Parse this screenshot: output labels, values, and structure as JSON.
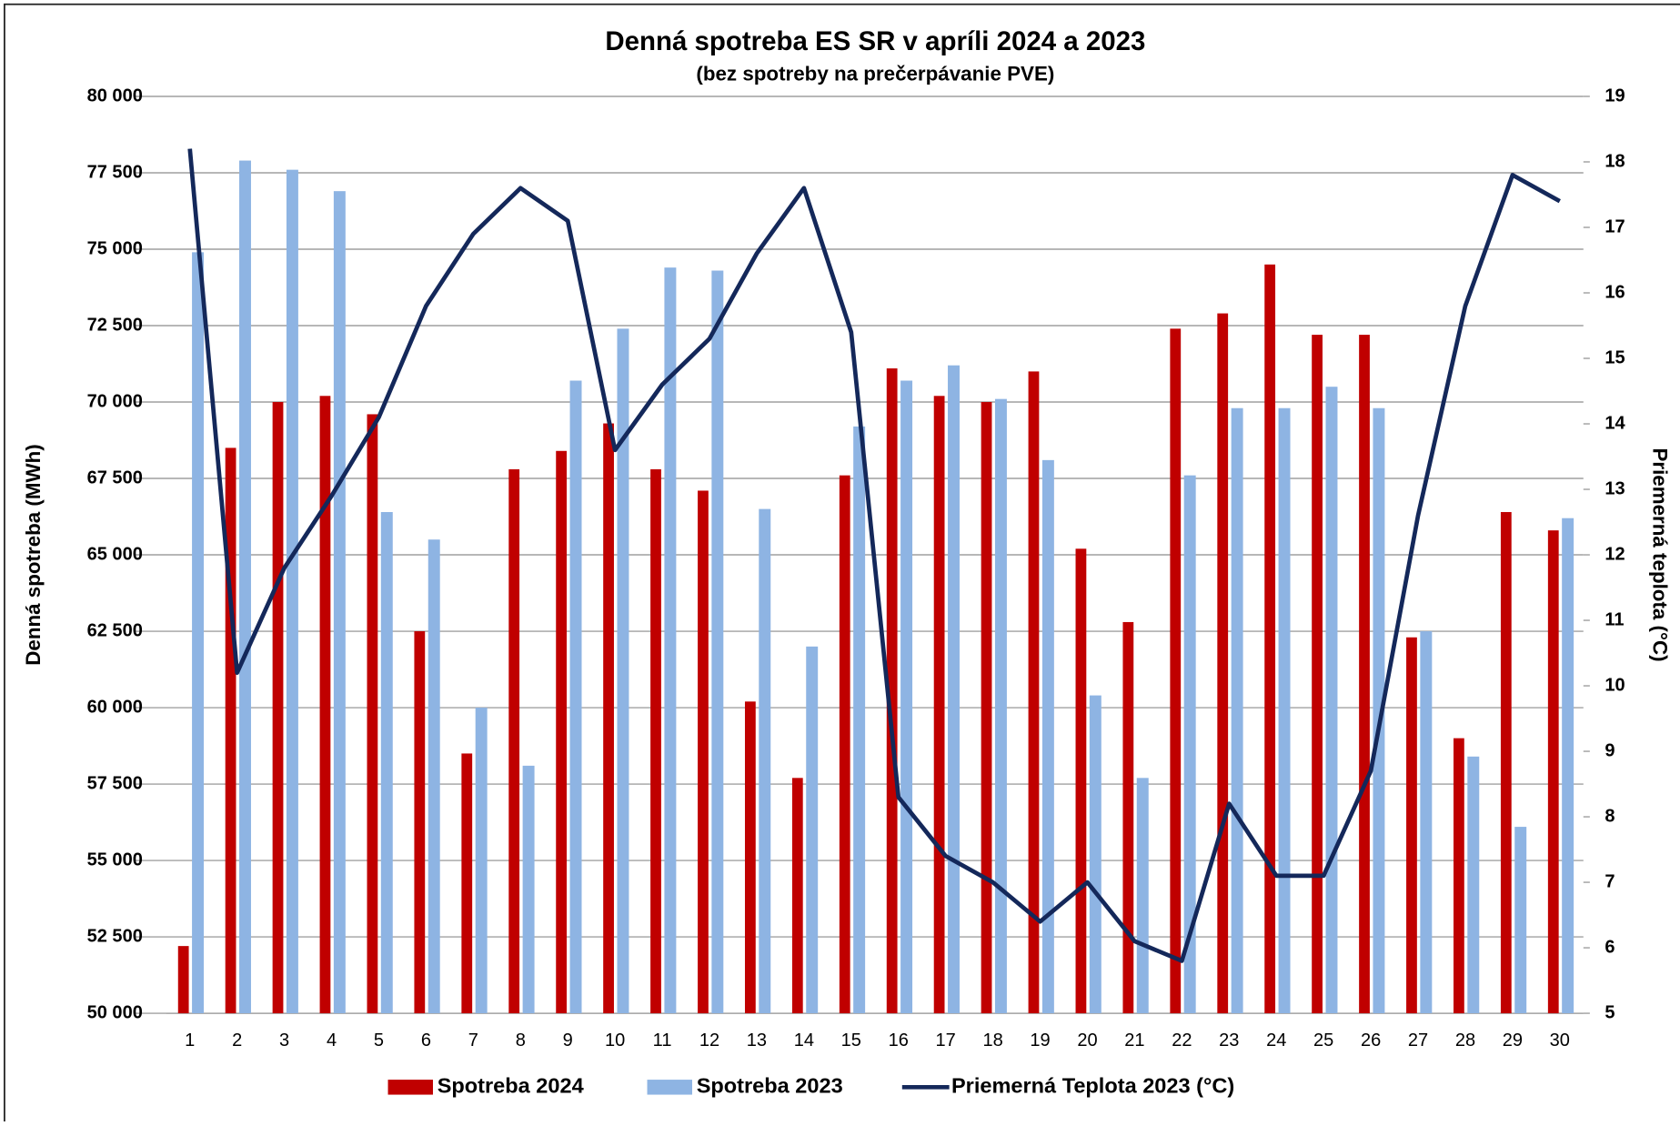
{
  "chart_data": {
    "type": "bar_line",
    "title": "Denná spotreba ES SR v apríli 2024 a 2023",
    "subtitle": "(bez spotreby na prečerpávanie PVE)",
    "ylabel": "Denná spotreba (MWh)",
    "y2label": "Priemerná teplota (°C)",
    "categories": [
      "1",
      "2",
      "3",
      "4",
      "5",
      "6",
      "7",
      "8",
      "9",
      "10",
      "11",
      "12",
      "13",
      "14",
      "15",
      "16",
      "17",
      "18",
      "19",
      "20",
      "21",
      "22",
      "23",
      "24",
      "25",
      "26",
      "27",
      "28",
      "29",
      "30"
    ],
    "series": [
      {
        "name": "Spotreba 2024",
        "type": "bar",
        "color": "#c00000",
        "values": [
          52200,
          68500,
          70000,
          70200,
          69600,
          62500,
          58500,
          67800,
          68400,
          69300,
          67800,
          67100,
          60200,
          57700,
          67600,
          71100,
          70200,
          70000,
          71000,
          65200,
          62800,
          72400,
          72900,
          74500,
          72200,
          72200,
          62300,
          59000,
          66400,
          65800
        ]
      },
      {
        "name": "Spotreba 2023",
        "type": "bar",
        "color": "#8eb4e3",
        "values": [
          74900,
          77900,
          77600,
          76900,
          66400,
          65500,
          60000,
          58100,
          70700,
          72400,
          74400,
          74300,
          66500,
          62000,
          69200,
          70700,
          71200,
          70100,
          68100,
          60400,
          57700,
          67600,
          69800,
          69800,
          70500,
          69800,
          62500,
          58400,
          56100,
          66200
        ]
      },
      {
        "name": "Priemerná Teplota 2023 (°C)",
        "type": "line",
        "color": "#14285a",
        "axis": "y2",
        "values": [
          18.2,
          10.2,
          11.8,
          12.9,
          14.1,
          15.8,
          16.9,
          17.6,
          17.1,
          13.6,
          14.6,
          15.3,
          16.6,
          17.6,
          15.4,
          8.3,
          7.4,
          7.0,
          6.4,
          7.0,
          6.1,
          5.8,
          8.2,
          7.1,
          7.1,
          8.7,
          12.6,
          15.8,
          17.8,
          17.4
        ]
      }
    ],
    "ylim": [
      50000,
      80000
    ],
    "yticks": [
      {
        "value": 50000,
        "label": "50 000"
      },
      {
        "value": 52500,
        "label": "52 500"
      },
      {
        "value": 55000,
        "label": "55 000"
      },
      {
        "value": 57500,
        "label": "57 500"
      },
      {
        "value": 60000,
        "label": "60 000"
      },
      {
        "value": 62500,
        "label": "62 500"
      },
      {
        "value": 65000,
        "label": "65 000"
      },
      {
        "value": 67500,
        "label": "67 500"
      },
      {
        "value": 70000,
        "label": "70 000"
      },
      {
        "value": 72500,
        "label": "72 500"
      },
      {
        "value": 75000,
        "label": "75 000"
      },
      {
        "value": 77500,
        "label": "77 500"
      },
      {
        "value": 80000,
        "label": "80 000"
      }
    ],
    "y2lim": [
      5,
      19
    ],
    "y2ticks": [
      5,
      6,
      7,
      8,
      9,
      10,
      11,
      12,
      13,
      14,
      15,
      16,
      17,
      18,
      19
    ],
    "grid": true,
    "legend": "bottom"
  }
}
